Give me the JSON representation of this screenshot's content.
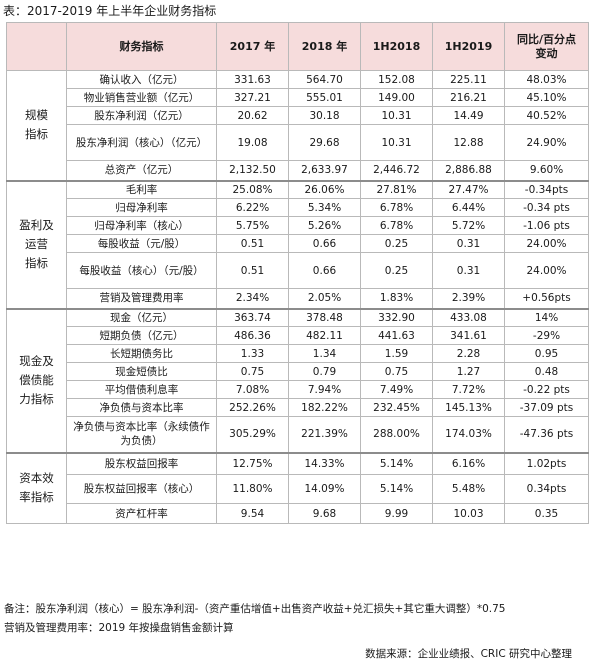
{
  "title": "表：2017-2019 年上半年企业财务指标",
  "header": {
    "indicator": "财务指标",
    "col_2017": "2017 年",
    "col_2018": "2018 年",
    "col_1h2018": "1H2018",
    "col_1h2019": "1H2019",
    "col_change_line1": "同比/百分点",
    "col_change_line2": "变动"
  },
  "groups": [
    {
      "label_lines": [
        "规模",
        "指标"
      ],
      "rows": [
        {
          "label": "确认收入（亿元）",
          "v2017": "331.63",
          "v2018": "564.70",
          "v1h2018": "152.08",
          "v1h2019": "225.11",
          "change": "48.03%"
        },
        {
          "label": "物业销售营业额（亿元）",
          "v2017": "327.21",
          "v2018": "555.01",
          "v1h2018": "149.00",
          "v1h2019": "216.21",
          "change": "45.10%"
        },
        {
          "label": "股东净利润（亿元）",
          "v2017": "20.62",
          "v2018": "30.18",
          "v1h2018": "10.31",
          "v1h2019": "14.49",
          "change": "40.52%"
        },
        {
          "label": "股东净利润（核心）（亿元）",
          "v2017": "19.08",
          "v2018": "29.68",
          "v1h2018": "10.31",
          "v1h2019": "12.88",
          "change": "24.90%"
        },
        {
          "label": "总资产（亿元）",
          "v2017": "2,132.50",
          "v2018": "2,633.97",
          "v1h2018": "2,446.72",
          "v1h2019": "2,886.88",
          "change": "9.60%"
        }
      ]
    },
    {
      "label_lines": [
        "盈利及",
        "运营",
        "指标"
      ],
      "rows": [
        {
          "label": "毛利率",
          "v2017": "25.08%",
          "v2018": "26.06%",
          "v1h2018": "27.81%",
          "v1h2019": "27.47%",
          "change": "-0.34pts"
        },
        {
          "label": "归母净利率",
          "v2017": "6.22%",
          "v2018": "5.34%",
          "v1h2018": "6.78%",
          "v1h2019": "6.44%",
          "change": "-0.34 pts"
        },
        {
          "label": "归母净利率（核心）",
          "v2017": "5.75%",
          "v2018": "5.26%",
          "v1h2018": "6.78%",
          "v1h2019": "5.72%",
          "change": "-1.06 pts"
        },
        {
          "label": "每股收益（元/股）",
          "v2017": "0.51",
          "v2018": "0.66",
          "v1h2018": "0.25",
          "v1h2019": "0.31",
          "change": "24.00%"
        },
        {
          "label": "每股收益（核心）（元/股）",
          "v2017": "0.51",
          "v2018": "0.66",
          "v1h2018": "0.25",
          "v1h2019": "0.31",
          "change": "24.00%"
        },
        {
          "label": "营销及管理费用率",
          "v2017": "2.34%",
          "v2018": "2.05%",
          "v1h2018": "1.83%",
          "v1h2019": "2.39%",
          "change": "+0.56pts"
        }
      ]
    },
    {
      "label_lines": [
        "现金及",
        "偿债能",
        "力指标"
      ],
      "rows": [
        {
          "label": "现金（亿元）",
          "v2017": "363.74",
          "v2018": "378.48",
          "v1h2018": "332.90",
          "v1h2019": "433.08",
          "change": "14%"
        },
        {
          "label": "短期负债（亿元）",
          "v2017": "486.36",
          "v2018": "482.11",
          "v1h2018": "441.63",
          "v1h2019": "341.61",
          "change": "-29%"
        },
        {
          "label": "长短期债务比",
          "v2017": "1.33",
          "v2018": "1.34",
          "v1h2018": "1.59",
          "v1h2019": "2.28",
          "change": "0.95"
        },
        {
          "label": "现金短债比",
          "v2017": "0.75",
          "v2018": "0.79",
          "v1h2018": "0.75",
          "v1h2019": "1.27",
          "change": "0.48"
        },
        {
          "label": "平均借债利息率",
          "v2017": "7.08%",
          "v2018": "7.94%",
          "v1h2018": "7.49%",
          "v1h2019": "7.72%",
          "change": "-0.22 pts"
        },
        {
          "label": "净负债与资本比率",
          "v2017": "252.26%",
          "v2018": "182.22%",
          "v1h2018": "232.45%",
          "v1h2019": "145.13%",
          "change": "-37.09 pts"
        },
        {
          "label": "净负债与资本比率（永续债作为负债）",
          "v2017": "305.29%",
          "v2018": "221.39%",
          "v1h2018": "288.00%",
          "v1h2019": "174.03%",
          "change": "-47.36 pts"
        }
      ]
    },
    {
      "label_lines": [
        "资本效",
        "率指标"
      ],
      "rows": [
        {
          "label": "股东权益回报率",
          "v2017": "12.75%",
          "v2018": "14.33%",
          "v1h2018": "5.14%",
          "v1h2019": "6.16%",
          "change": "1.02pts"
        },
        {
          "label": "股东权益回报率（核心）",
          "v2017": "11.80%",
          "v2018": "14.09%",
          "v1h2018": "5.14%",
          "v1h2019": "5.48%",
          "change": "0.34pts"
        },
        {
          "label": "资产杠杆率",
          "v2017": "9.54",
          "v2018": "9.68",
          "v1h2018": "9.99",
          "v1h2019": "10.03",
          "change": "0.35"
        }
      ]
    }
  ],
  "notes": [
    "备注：股东净利润（核心）= 股东净利润-（资产重估增值+出售资产收益+兑汇损失+其它重大调整）*0.75",
    "营销及管理费用率：2019 年按操盘销售金额计算"
  ],
  "source": "数据来源：企业业绩报、CRIC 研究中心整理"
}
